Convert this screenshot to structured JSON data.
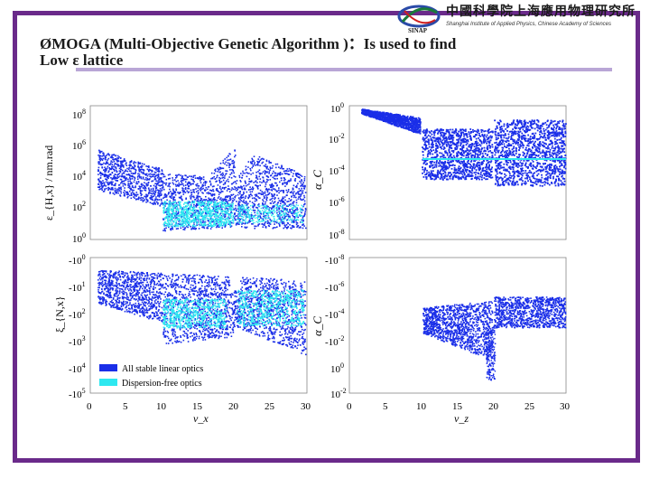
{
  "slide": {
    "title_line1": "ØMOGA (Multi-Objective Genetic Algorithm )：Is used to find",
    "title_line2": "Low ε lattice"
  },
  "logo": {
    "cn": "中國科學院上海應用物理研究所",
    "en": "Shanghai Institute of Applied Physics, Chinese Academy of Sciences",
    "abbr": "SINAP"
  },
  "colors": {
    "frame": "#6a2a8a",
    "stable": "#1a2ee8",
    "dispersion_free": "#2ee8f0",
    "underline": "#b9a6d6"
  },
  "chart_data": [
    {
      "type": "scatter",
      "panel": "top-left",
      "ylabel": "ε_{H,x} / nm.rad",
      "y_scale": "log",
      "ylim_exp": [
        0,
        8
      ],
      "y_ticks": [
        "10^0",
        "10^2",
        "10^4",
        "10^6",
        "10^8"
      ],
      "xlim": [
        0,
        30
      ],
      "x_tick_labels_shown": false
    },
    {
      "type": "scatter",
      "panel": "top-right",
      "ylabel": "α_C",
      "y_scale": "log",
      "ylim_exp": [
        -8,
        0
      ],
      "y_ticks": [
        "10^0",
        "10^-2",
        "10^-4",
        "10^-6",
        "10^-8"
      ],
      "xlim": [
        0,
        30
      ],
      "x_tick_labels_shown": false
    },
    {
      "type": "scatter",
      "panel": "bottom-left",
      "ylabel": "ξ_{N,x}",
      "y_scale": "symlog-negative",
      "y_ticks": [
        "-10^0",
        "-10^1",
        "-10^2",
        "-10^3",
        "-10^4",
        "-10^5"
      ],
      "xlabel": "ν_x",
      "x_ticks": [
        "0",
        "5",
        "10",
        "15",
        "20",
        "25",
        "30"
      ],
      "xlim": [
        0,
        30
      ],
      "legend": {
        "placement": "bottom-left",
        "entries": [
          "All stable linear optics",
          "Dispersion-free optics"
        ]
      }
    },
    {
      "type": "scatter",
      "panel": "bottom-right",
      "ylabel": "α_C",
      "y_scale": "symlog",
      "y_ticks": [
        "-10^-8",
        "-10^-6",
        "-10^-4",
        "-10^-2",
        "10^0",
        "10^-2"
      ],
      "xlabel": "ν_z",
      "x_ticks": [
        "0",
        "5",
        "10",
        "15",
        "20",
        "25",
        "30"
      ],
      "xlim": [
        0,
        30
      ]
    }
  ],
  "series": [
    {
      "name": "All stable linear optics",
      "color": "#1a2ee8"
    },
    {
      "name": "Dispersion-free optics",
      "color": "#2ee8f0"
    }
  ]
}
